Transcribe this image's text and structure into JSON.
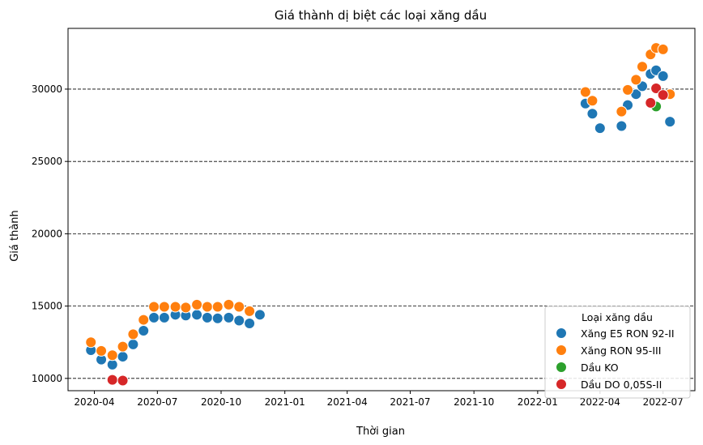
{
  "chart_data": {
    "type": "scatter",
    "title": "Giá thành dị biệt các loại xăng dầu",
    "xlabel": "Thời gian",
    "ylabel": "Giá thành",
    "x_axis": {
      "scale": "date",
      "range": [
        "2020-02-23",
        "2022-08-16"
      ],
      "ticks": [
        "2020-04-01",
        "2020-07-01",
        "2020-10-01",
        "2021-01-01",
        "2021-04-01",
        "2021-07-01",
        "2021-10-01",
        "2022-01-01",
        "2022-04-01",
        "2022-07-01"
      ],
      "tick_labels": [
        "2020-04",
        "2020-07",
        "2020-10",
        "2021-01",
        "2021-04",
        "2021-07",
        "2021-10",
        "2022-01",
        "2022-04",
        "2022-07"
      ]
    },
    "y_axis": {
      "range": [
        9150,
        34200
      ],
      "ticks": [
        10000,
        15000,
        20000,
        25000,
        30000
      ],
      "tick_labels": [
        "10000",
        "15000",
        "20000",
        "25000",
        "30000"
      ]
    },
    "grid": "horizontal dashed",
    "legend": {
      "title": "Loại xăng dầu",
      "placement": "lower-right"
    },
    "series": [
      {
        "name": "Xăng E5 RON 92-II",
        "color": "#1f77b4",
        "points": [
          {
            "x": "2020-03-27",
            "y": 11950
          },
          {
            "x": "2020-04-11",
            "y": 11300
          },
          {
            "x": "2020-04-27",
            "y": 10950
          },
          {
            "x": "2020-05-12",
            "y": 11500
          },
          {
            "x": "2020-05-27",
            "y": 12350
          },
          {
            "x": "2020-06-11",
            "y": 13300
          },
          {
            "x": "2020-06-26",
            "y": 14200
          },
          {
            "x": "2020-07-11",
            "y": 14200
          },
          {
            "x": "2020-07-27",
            "y": 14400
          },
          {
            "x": "2020-08-11",
            "y": 14350
          },
          {
            "x": "2020-08-27",
            "y": 14400
          },
          {
            "x": "2020-09-11",
            "y": 14200
          },
          {
            "x": "2020-09-26",
            "y": 14150
          },
          {
            "x": "2020-10-12",
            "y": 14200
          },
          {
            "x": "2020-10-27",
            "y": 14000
          },
          {
            "x": "2020-11-11",
            "y": 13800
          },
          {
            "x": "2020-11-26",
            "y": 14400
          },
          {
            "x": "2022-03-11",
            "y": 29000
          },
          {
            "x": "2022-03-21",
            "y": 28300
          },
          {
            "x": "2022-04-01",
            "y": 27300
          },
          {
            "x": "2022-05-02",
            "y": 27450
          },
          {
            "x": "2022-05-11",
            "y": 28900
          },
          {
            "x": "2022-05-23",
            "y": 29650
          },
          {
            "x": "2022-06-01",
            "y": 30200
          },
          {
            "x": "2022-06-13",
            "y": 31050
          },
          {
            "x": "2022-06-21",
            "y": 31300
          },
          {
            "x": "2022-07-01",
            "y": 30900
          },
          {
            "x": "2022-07-11",
            "y": 27750
          }
        ]
      },
      {
        "name": "Xăng RON 95-III",
        "color": "#ff7f0e",
        "points": [
          {
            "x": "2020-03-27",
            "y": 12500
          },
          {
            "x": "2020-04-11",
            "y": 11900
          },
          {
            "x": "2020-04-27",
            "y": 11600
          },
          {
            "x": "2020-05-12",
            "y": 12200
          },
          {
            "x": "2020-05-27",
            "y": 13050
          },
          {
            "x": "2020-06-11",
            "y": 14050
          },
          {
            "x": "2020-06-26",
            "y": 14950
          },
          {
            "x": "2020-07-11",
            "y": 14950
          },
          {
            "x": "2020-07-27",
            "y": 14950
          },
          {
            "x": "2020-08-11",
            "y": 14900
          },
          {
            "x": "2020-08-27",
            "y": 15100
          },
          {
            "x": "2020-09-11",
            "y": 14950
          },
          {
            "x": "2020-09-26",
            "y": 14950
          },
          {
            "x": "2020-10-12",
            "y": 15100
          },
          {
            "x": "2020-10-27",
            "y": 14950
          },
          {
            "x": "2020-11-11",
            "y": 14650
          },
          {
            "x": "2022-03-11",
            "y": 29800
          },
          {
            "x": "2022-03-21",
            "y": 29200
          },
          {
            "x": "2022-05-02",
            "y": 28450
          },
          {
            "x": "2022-05-11",
            "y": 29950
          },
          {
            "x": "2022-05-23",
            "y": 30650
          },
          {
            "x": "2022-06-01",
            "y": 31550
          },
          {
            "x": "2022-06-13",
            "y": 32400
          },
          {
            "x": "2022-06-21",
            "y": 32850
          },
          {
            "x": "2022-07-01",
            "y": 32750
          },
          {
            "x": "2022-07-11",
            "y": 29650
          }
        ]
      },
      {
        "name": "Dầu KO",
        "color": "#2ca02c",
        "points": [
          {
            "x": "2022-06-21",
            "y": 28800
          }
        ]
      },
      {
        "name": "Dầu DO 0,05S-II",
        "color": "#d62728",
        "points": [
          {
            "x": "2020-04-27",
            "y": 9900
          },
          {
            "x": "2020-05-12",
            "y": 9850
          },
          {
            "x": "2022-06-13",
            "y": 29050
          },
          {
            "x": "2022-06-21",
            "y": 30050
          },
          {
            "x": "2022-07-01",
            "y": 29600
          }
        ]
      }
    ]
  }
}
